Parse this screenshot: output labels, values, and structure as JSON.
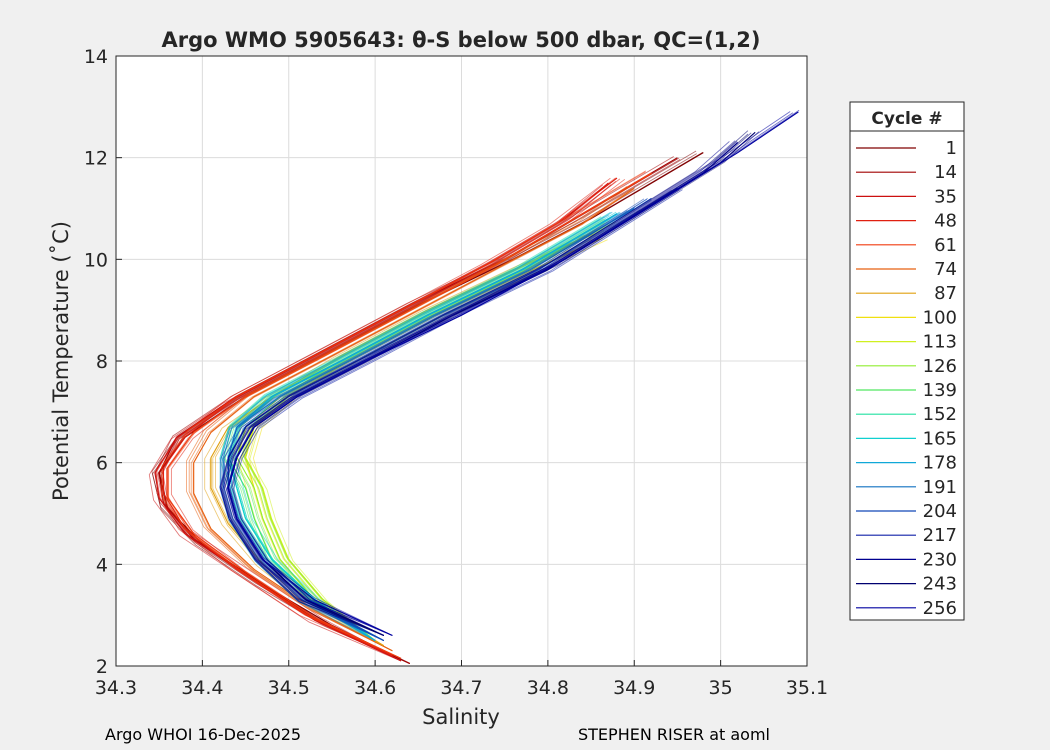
{
  "chart_data": {
    "type": "line",
    "title": "Argo WMO 5905643: θ-S below 500 dbar,  QC=(1,2)",
    "xlabel": "Salinity",
    "ylabel": "Potential Temperature (˚C)",
    "xlim": [
      34.3,
      35.1
    ],
    "ylim": [
      2,
      14
    ],
    "xticks": [
      "34.3",
      "34.4",
      "34.5",
      "34.6",
      "34.7",
      "34.8",
      "34.9",
      "35",
      "35.1"
    ],
    "yticks": [
      "2",
      "4",
      "6",
      "8",
      "10",
      "12",
      "14"
    ],
    "grid": true,
    "legend": {
      "title": "Cycle #",
      "position": "right",
      "entries": [
        {
          "label": "1",
          "color": "#800000"
        },
        {
          "label": "14",
          "color": "#a00000"
        },
        {
          "label": "35",
          "color": "#cc1010"
        },
        {
          "label": "48",
          "color": "#e02010"
        },
        {
          "label": "61",
          "color": "#f03c10"
        },
        {
          "label": "74",
          "color": "#e86010"
        },
        {
          "label": "87",
          "color": "#e0a010"
        },
        {
          "label": "100",
          "color": "#f0e010"
        },
        {
          "label": "113",
          "color": "#d0f020"
        },
        {
          "label": "126",
          "color": "#90ee30"
        },
        {
          "label": "139",
          "color": "#50e860"
        },
        {
          "label": "152",
          "color": "#20e0a0"
        },
        {
          "label": "165",
          "color": "#10d0d0"
        },
        {
          "label": "178",
          "color": "#10a8d8"
        },
        {
          "label": "191",
          "color": "#1070c0"
        },
        {
          "label": "204",
          "color": "#1048b8"
        },
        {
          "label": "217",
          "color": "#1020a8"
        },
        {
          "label": "230",
          "color": "#000090"
        },
        {
          "label": "243",
          "color": "#000070"
        },
        {
          "label": "256",
          "color": "#0000a0"
        }
      ]
    },
    "series": [
      {
        "name": "1",
        "color": "#800000",
        "points": [
          [
            34.64,
            2.05
          ],
          [
            34.55,
            2.8
          ],
          [
            34.47,
            3.6
          ],
          [
            34.4,
            4.4
          ],
          [
            34.36,
            5.1
          ],
          [
            34.35,
            5.8
          ],
          [
            34.38,
            6.5
          ],
          [
            34.45,
            7.3
          ],
          [
            34.55,
            8.2
          ],
          [
            34.65,
            9.1
          ],
          [
            34.76,
            10.0
          ],
          [
            34.85,
            10.8
          ],
          [
            34.93,
            11.6
          ],
          [
            34.98,
            12.1
          ]
        ]
      },
      {
        "name": "14",
        "color": "#a00000",
        "points": [
          [
            34.64,
            2.05
          ],
          [
            34.54,
            2.85
          ],
          [
            34.46,
            3.7
          ],
          [
            34.39,
            4.5
          ],
          [
            34.355,
            5.2
          ],
          [
            34.35,
            5.8
          ],
          [
            34.37,
            6.5
          ],
          [
            34.44,
            7.3
          ],
          [
            34.54,
            8.2
          ],
          [
            34.64,
            9.1
          ],
          [
            34.75,
            10.0
          ],
          [
            34.83,
            10.8
          ],
          [
            34.9,
            11.5
          ],
          [
            34.95,
            12.0
          ]
        ]
      },
      {
        "name": "35",
        "color": "#cc1010",
        "points": [
          [
            34.63,
            2.1
          ],
          [
            34.53,
            2.9
          ],
          [
            34.45,
            3.8
          ],
          [
            34.38,
            4.6
          ],
          [
            34.35,
            5.3
          ],
          [
            34.345,
            5.8
          ],
          [
            34.37,
            6.5
          ],
          [
            34.43,
            7.2
          ],
          [
            34.53,
            8.1
          ],
          [
            34.63,
            9.0
          ],
          [
            34.74,
            10.0
          ],
          [
            34.82,
            10.8
          ],
          [
            34.87,
            11.5
          ]
        ]
      },
      {
        "name": "48",
        "color": "#e02010",
        "points": [
          [
            34.62,
            2.2
          ],
          [
            34.52,
            3.0
          ],
          [
            34.44,
            3.9
          ],
          [
            34.38,
            4.7
          ],
          [
            34.355,
            5.4
          ],
          [
            34.355,
            5.9
          ],
          [
            34.38,
            6.5
          ],
          [
            34.44,
            7.3
          ],
          [
            34.53,
            8.1
          ],
          [
            34.63,
            9.0
          ],
          [
            34.73,
            9.9
          ],
          [
            34.81,
            10.7
          ],
          [
            34.88,
            11.6
          ]
        ]
      },
      {
        "name": "61",
        "color": "#f03c10",
        "points": [
          [
            34.63,
            2.15
          ],
          [
            34.53,
            2.95
          ],
          [
            34.45,
            3.85
          ],
          [
            34.39,
            4.6
          ],
          [
            34.36,
            5.3
          ],
          [
            34.36,
            5.9
          ],
          [
            34.39,
            6.6
          ],
          [
            34.45,
            7.3
          ],
          [
            34.54,
            8.1
          ],
          [
            34.64,
            9.0
          ],
          [
            34.74,
            9.9
          ],
          [
            34.82,
            10.7
          ],
          [
            34.92,
            11.7
          ]
        ]
      },
      {
        "name": "74",
        "color": "#e86010",
        "points": [
          [
            34.62,
            2.3
          ],
          [
            34.53,
            3.1
          ],
          [
            34.46,
            3.9
          ],
          [
            34.41,
            4.7
          ],
          [
            34.39,
            5.4
          ],
          [
            34.39,
            6.0
          ],
          [
            34.41,
            6.6
          ],
          [
            34.46,
            7.3
          ],
          [
            34.55,
            8.1
          ],
          [
            34.65,
            9.0
          ],
          [
            34.75,
            9.9
          ],
          [
            34.84,
            10.7
          ],
          [
            34.9,
            11.4
          ]
        ]
      },
      {
        "name": "87",
        "color": "#e0a010",
        "points": [
          [
            34.61,
            2.4
          ],
          [
            34.53,
            3.2
          ],
          [
            34.47,
            4.0
          ],
          [
            34.43,
            4.8
          ],
          [
            34.41,
            5.5
          ],
          [
            34.41,
            6.1
          ],
          [
            34.43,
            6.7
          ],
          [
            34.48,
            7.3
          ],
          [
            34.56,
            8.1
          ],
          [
            34.66,
            9.0
          ],
          [
            34.76,
            9.8
          ],
          [
            34.85,
            10.5
          ]
        ]
      },
      {
        "name": "100",
        "color": "#f0e010",
        "points": [
          [
            34.6,
            2.5
          ],
          [
            34.53,
            3.3
          ],
          [
            34.49,
            4.1
          ],
          [
            34.47,
            4.9
          ],
          [
            34.46,
            5.5
          ],
          [
            34.45,
            6.1
          ],
          [
            34.46,
            6.7
          ],
          [
            34.5,
            7.3
          ],
          [
            34.57,
            8.0
          ],
          [
            34.67,
            8.9
          ],
          [
            34.77,
            9.7
          ],
          [
            34.86,
            10.4
          ]
        ]
      },
      {
        "name": "113",
        "color": "#d0f020",
        "points": [
          [
            34.6,
            2.5
          ],
          [
            34.54,
            3.3
          ],
          [
            34.5,
            4.1
          ],
          [
            34.48,
            4.9
          ],
          [
            34.47,
            5.5
          ],
          [
            34.45,
            6.1
          ],
          [
            34.46,
            6.7
          ],
          [
            34.5,
            7.3
          ],
          [
            34.57,
            8.0
          ],
          [
            34.67,
            8.9
          ],
          [
            34.78,
            9.8
          ],
          [
            34.86,
            10.6
          ]
        ]
      },
      {
        "name": "126",
        "color": "#90ee30",
        "points": [
          [
            34.6,
            2.5
          ],
          [
            34.53,
            3.3
          ],
          [
            34.49,
            4.1
          ],
          [
            34.47,
            4.9
          ],
          [
            34.46,
            5.5
          ],
          [
            34.44,
            6.1
          ],
          [
            34.45,
            6.7
          ],
          [
            34.49,
            7.3
          ],
          [
            34.56,
            8.0
          ],
          [
            34.66,
            8.9
          ],
          [
            34.77,
            9.8
          ],
          [
            34.87,
            10.7
          ]
        ]
      },
      {
        "name": "139",
        "color": "#50e860",
        "points": [
          [
            34.6,
            2.5
          ],
          [
            34.53,
            3.3
          ],
          [
            34.48,
            4.1
          ],
          [
            34.46,
            4.9
          ],
          [
            34.45,
            5.5
          ],
          [
            34.43,
            6.1
          ],
          [
            34.44,
            6.7
          ],
          [
            34.48,
            7.3
          ],
          [
            34.56,
            8.0
          ],
          [
            34.66,
            8.9
          ],
          [
            34.77,
            9.8
          ],
          [
            34.87,
            10.8
          ]
        ]
      },
      {
        "name": "152",
        "color": "#20e0a0",
        "points": [
          [
            34.6,
            2.5
          ],
          [
            34.53,
            3.3
          ],
          [
            34.48,
            4.1
          ],
          [
            34.45,
            4.9
          ],
          [
            34.44,
            5.5
          ],
          [
            34.43,
            6.1
          ],
          [
            34.44,
            6.7
          ],
          [
            34.48,
            7.3
          ],
          [
            34.56,
            8.0
          ],
          [
            34.66,
            8.9
          ],
          [
            34.77,
            9.8
          ],
          [
            34.87,
            10.8
          ]
        ]
      },
      {
        "name": "165",
        "color": "#10d0d0",
        "points": [
          [
            34.6,
            2.5
          ],
          [
            34.53,
            3.3
          ],
          [
            34.48,
            4.1
          ],
          [
            34.45,
            4.9
          ],
          [
            34.44,
            5.5
          ],
          [
            34.43,
            6.1
          ],
          [
            34.44,
            6.7
          ],
          [
            34.48,
            7.3
          ],
          [
            34.56,
            8.0
          ],
          [
            34.66,
            8.9
          ],
          [
            34.77,
            9.8
          ],
          [
            34.88,
            10.9
          ]
        ]
      },
      {
        "name": "178",
        "color": "#10a8d8",
        "points": [
          [
            34.6,
            2.5
          ],
          [
            34.52,
            3.3
          ],
          [
            34.47,
            4.1
          ],
          [
            34.44,
            4.9
          ],
          [
            34.43,
            5.5
          ],
          [
            34.43,
            6.1
          ],
          [
            34.44,
            6.7
          ],
          [
            34.48,
            7.3
          ],
          [
            34.56,
            8.0
          ],
          [
            34.66,
            8.9
          ],
          [
            34.77,
            9.8
          ],
          [
            34.88,
            10.9
          ]
        ]
      },
      {
        "name": "191",
        "color": "#1070c0",
        "points": [
          [
            34.61,
            2.5
          ],
          [
            34.52,
            3.3
          ],
          [
            34.47,
            4.1
          ],
          [
            34.44,
            4.9
          ],
          [
            34.43,
            5.5
          ],
          [
            34.43,
            6.1
          ],
          [
            34.44,
            6.7
          ],
          [
            34.49,
            7.3
          ],
          [
            34.57,
            8.0
          ],
          [
            34.67,
            8.9
          ],
          [
            34.78,
            9.8
          ],
          [
            34.9,
            11.0
          ]
        ]
      },
      {
        "name": "204",
        "color": "#1048b8",
        "points": [
          [
            34.61,
            2.5
          ],
          [
            34.52,
            3.3
          ],
          [
            34.47,
            4.1
          ],
          [
            34.44,
            4.9
          ],
          [
            34.43,
            5.5
          ],
          [
            34.43,
            6.1
          ],
          [
            34.45,
            6.7
          ],
          [
            34.5,
            7.3
          ],
          [
            34.58,
            8.0
          ],
          [
            34.68,
            8.9
          ],
          [
            34.79,
            9.8
          ],
          [
            34.92,
            11.2
          ]
        ]
      },
      {
        "name": "217",
        "color": "#1020a8",
        "points": [
          [
            34.61,
            2.6
          ],
          [
            34.52,
            3.3
          ],
          [
            34.47,
            4.1
          ],
          [
            34.44,
            4.9
          ],
          [
            34.43,
            5.5
          ],
          [
            34.44,
            6.1
          ],
          [
            34.46,
            6.7
          ],
          [
            34.51,
            7.3
          ],
          [
            34.59,
            8.0
          ],
          [
            34.69,
            8.9
          ],
          [
            34.8,
            9.8
          ],
          [
            34.95,
            11.4
          ]
        ]
      },
      {
        "name": "230",
        "color": "#000090",
        "points": [
          [
            34.61,
            2.6
          ],
          [
            34.52,
            3.3
          ],
          [
            34.47,
            4.1
          ],
          [
            34.44,
            4.9
          ],
          [
            34.43,
            5.5
          ],
          [
            34.44,
            6.1
          ],
          [
            34.46,
            6.7
          ],
          [
            34.51,
            7.3
          ],
          [
            34.59,
            8.0
          ],
          [
            34.69,
            8.9
          ],
          [
            34.8,
            9.8
          ],
          [
            34.98,
            11.7
          ],
          [
            35.02,
            12.3
          ]
        ]
      },
      {
        "name": "243",
        "color": "#000070",
        "points": [
          [
            34.61,
            2.6
          ],
          [
            34.52,
            3.3
          ],
          [
            34.47,
            4.1
          ],
          [
            34.44,
            4.9
          ],
          [
            34.43,
            5.5
          ],
          [
            34.44,
            6.1
          ],
          [
            34.46,
            6.7
          ],
          [
            34.51,
            7.3
          ],
          [
            34.59,
            8.0
          ],
          [
            34.69,
            8.9
          ],
          [
            34.81,
            9.9
          ],
          [
            35.0,
            11.9
          ],
          [
            35.04,
            12.5
          ]
        ]
      },
      {
        "name": "256",
        "color": "#0000a0",
        "points": [
          [
            34.62,
            2.6
          ],
          [
            34.53,
            3.3
          ],
          [
            34.47,
            4.1
          ],
          [
            34.44,
            4.9
          ],
          [
            34.43,
            5.5
          ],
          [
            34.44,
            6.1
          ],
          [
            34.46,
            6.7
          ],
          [
            34.51,
            7.3
          ],
          [
            34.59,
            8.0
          ],
          [
            34.7,
            8.9
          ],
          [
            34.82,
            10.0
          ],
          [
            35.02,
            12.1
          ],
          [
            35.09,
            12.9
          ]
        ]
      }
    ]
  },
  "footer": {
    "left": "Argo WHOI 16-Dec-2025",
    "right": "STEPHEN RISER at aoml"
  }
}
